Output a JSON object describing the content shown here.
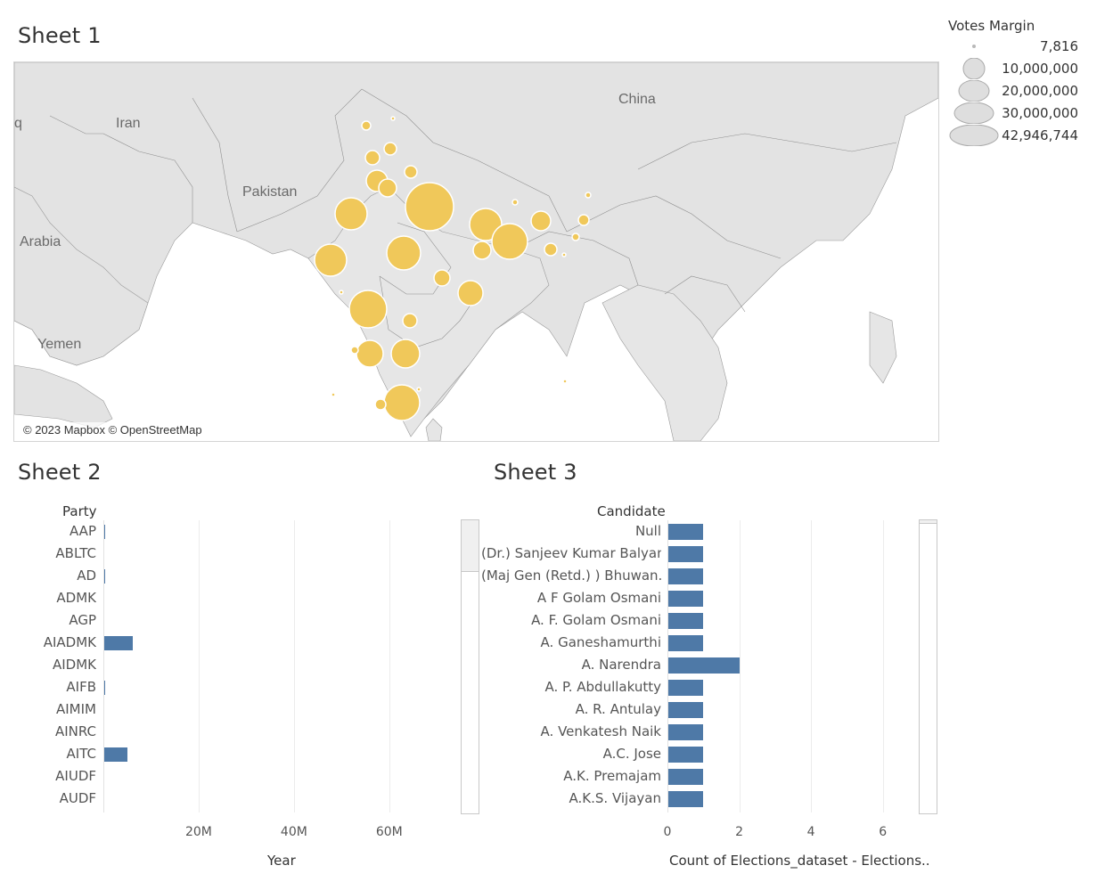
{
  "sheet1": {
    "title": "Sheet 1",
    "attribution": "© 2023 Mapbox © OpenStreetMap",
    "places": [
      "China",
      "Iran",
      "Pakistan",
      "Arabia",
      "Yemen",
      "q"
    ],
    "bubble_color": "#f0c85a",
    "legend": {
      "title": "Votes Margin",
      "entries": [
        "7,816",
        "10,000,000",
        "20,000,000",
        "30,000,000",
        "42,946,744"
      ]
    }
  },
  "sheet2": {
    "title": "Sheet 2",
    "y_header": "Party",
    "x_title": "Year",
    "chart_data": {
      "type": "bar",
      "orientation": "horizontal",
      "categories": [
        "AAP",
        "ABLTC",
        "AD",
        "ADMK",
        "AGP",
        "AIADMK",
        "AIDMK",
        "AIFB",
        "AIMIM",
        "AINRC",
        "AITC",
        "AIUDF",
        "AUDF"
      ],
      "values": [
        300000,
        60000,
        300000,
        90000,
        150000,
        6200000,
        70000,
        300000,
        150000,
        90000,
        5100000,
        100000,
        250000
      ],
      "xlabel": "Year",
      "ylabel": "Party",
      "xlim": [
        0,
        75000000
      ],
      "x_ticks": [
        20000000,
        40000000,
        60000000
      ],
      "x_tick_labels": [
        "20M",
        "40M",
        "60M"
      ],
      "bar_color": "#4e79a7"
    }
  },
  "sheet3": {
    "title": "Sheet 3",
    "y_header": "Candidate",
    "x_title": "Count of Elections_dataset - Elections..",
    "chart_data": {
      "type": "bar",
      "orientation": "horizontal",
      "categories": [
        "Null",
        "(Dr.) Sanjeev Kumar Balyan",
        "(Maj Gen (Retd.) ) Bhuwan..",
        "A F Golam Osmani",
        "A. F. Golam Osmani",
        "A. Ganeshamurthi",
        "A. Narendra",
        "A. P. Abdullakutty",
        "A. R. Antulay",
        "A. Venkatesh Naik",
        "A.C. Jose",
        "A.K. Premajam",
        "A.K.S. Vijayan"
      ],
      "values": [
        1,
        1,
        1,
        1,
        1,
        1,
        2,
        1,
        1,
        1,
        1,
        1,
        1
      ],
      "xlabel": "Count of Elections_dataset - Elections..",
      "ylabel": "Candidate",
      "xlim": [
        0,
        7
      ],
      "x_ticks": [
        0,
        2,
        4,
        6
      ],
      "x_tick_labels": [
        "0",
        "2",
        "4",
        "6"
      ],
      "bar_color": "#4e79a7"
    }
  }
}
